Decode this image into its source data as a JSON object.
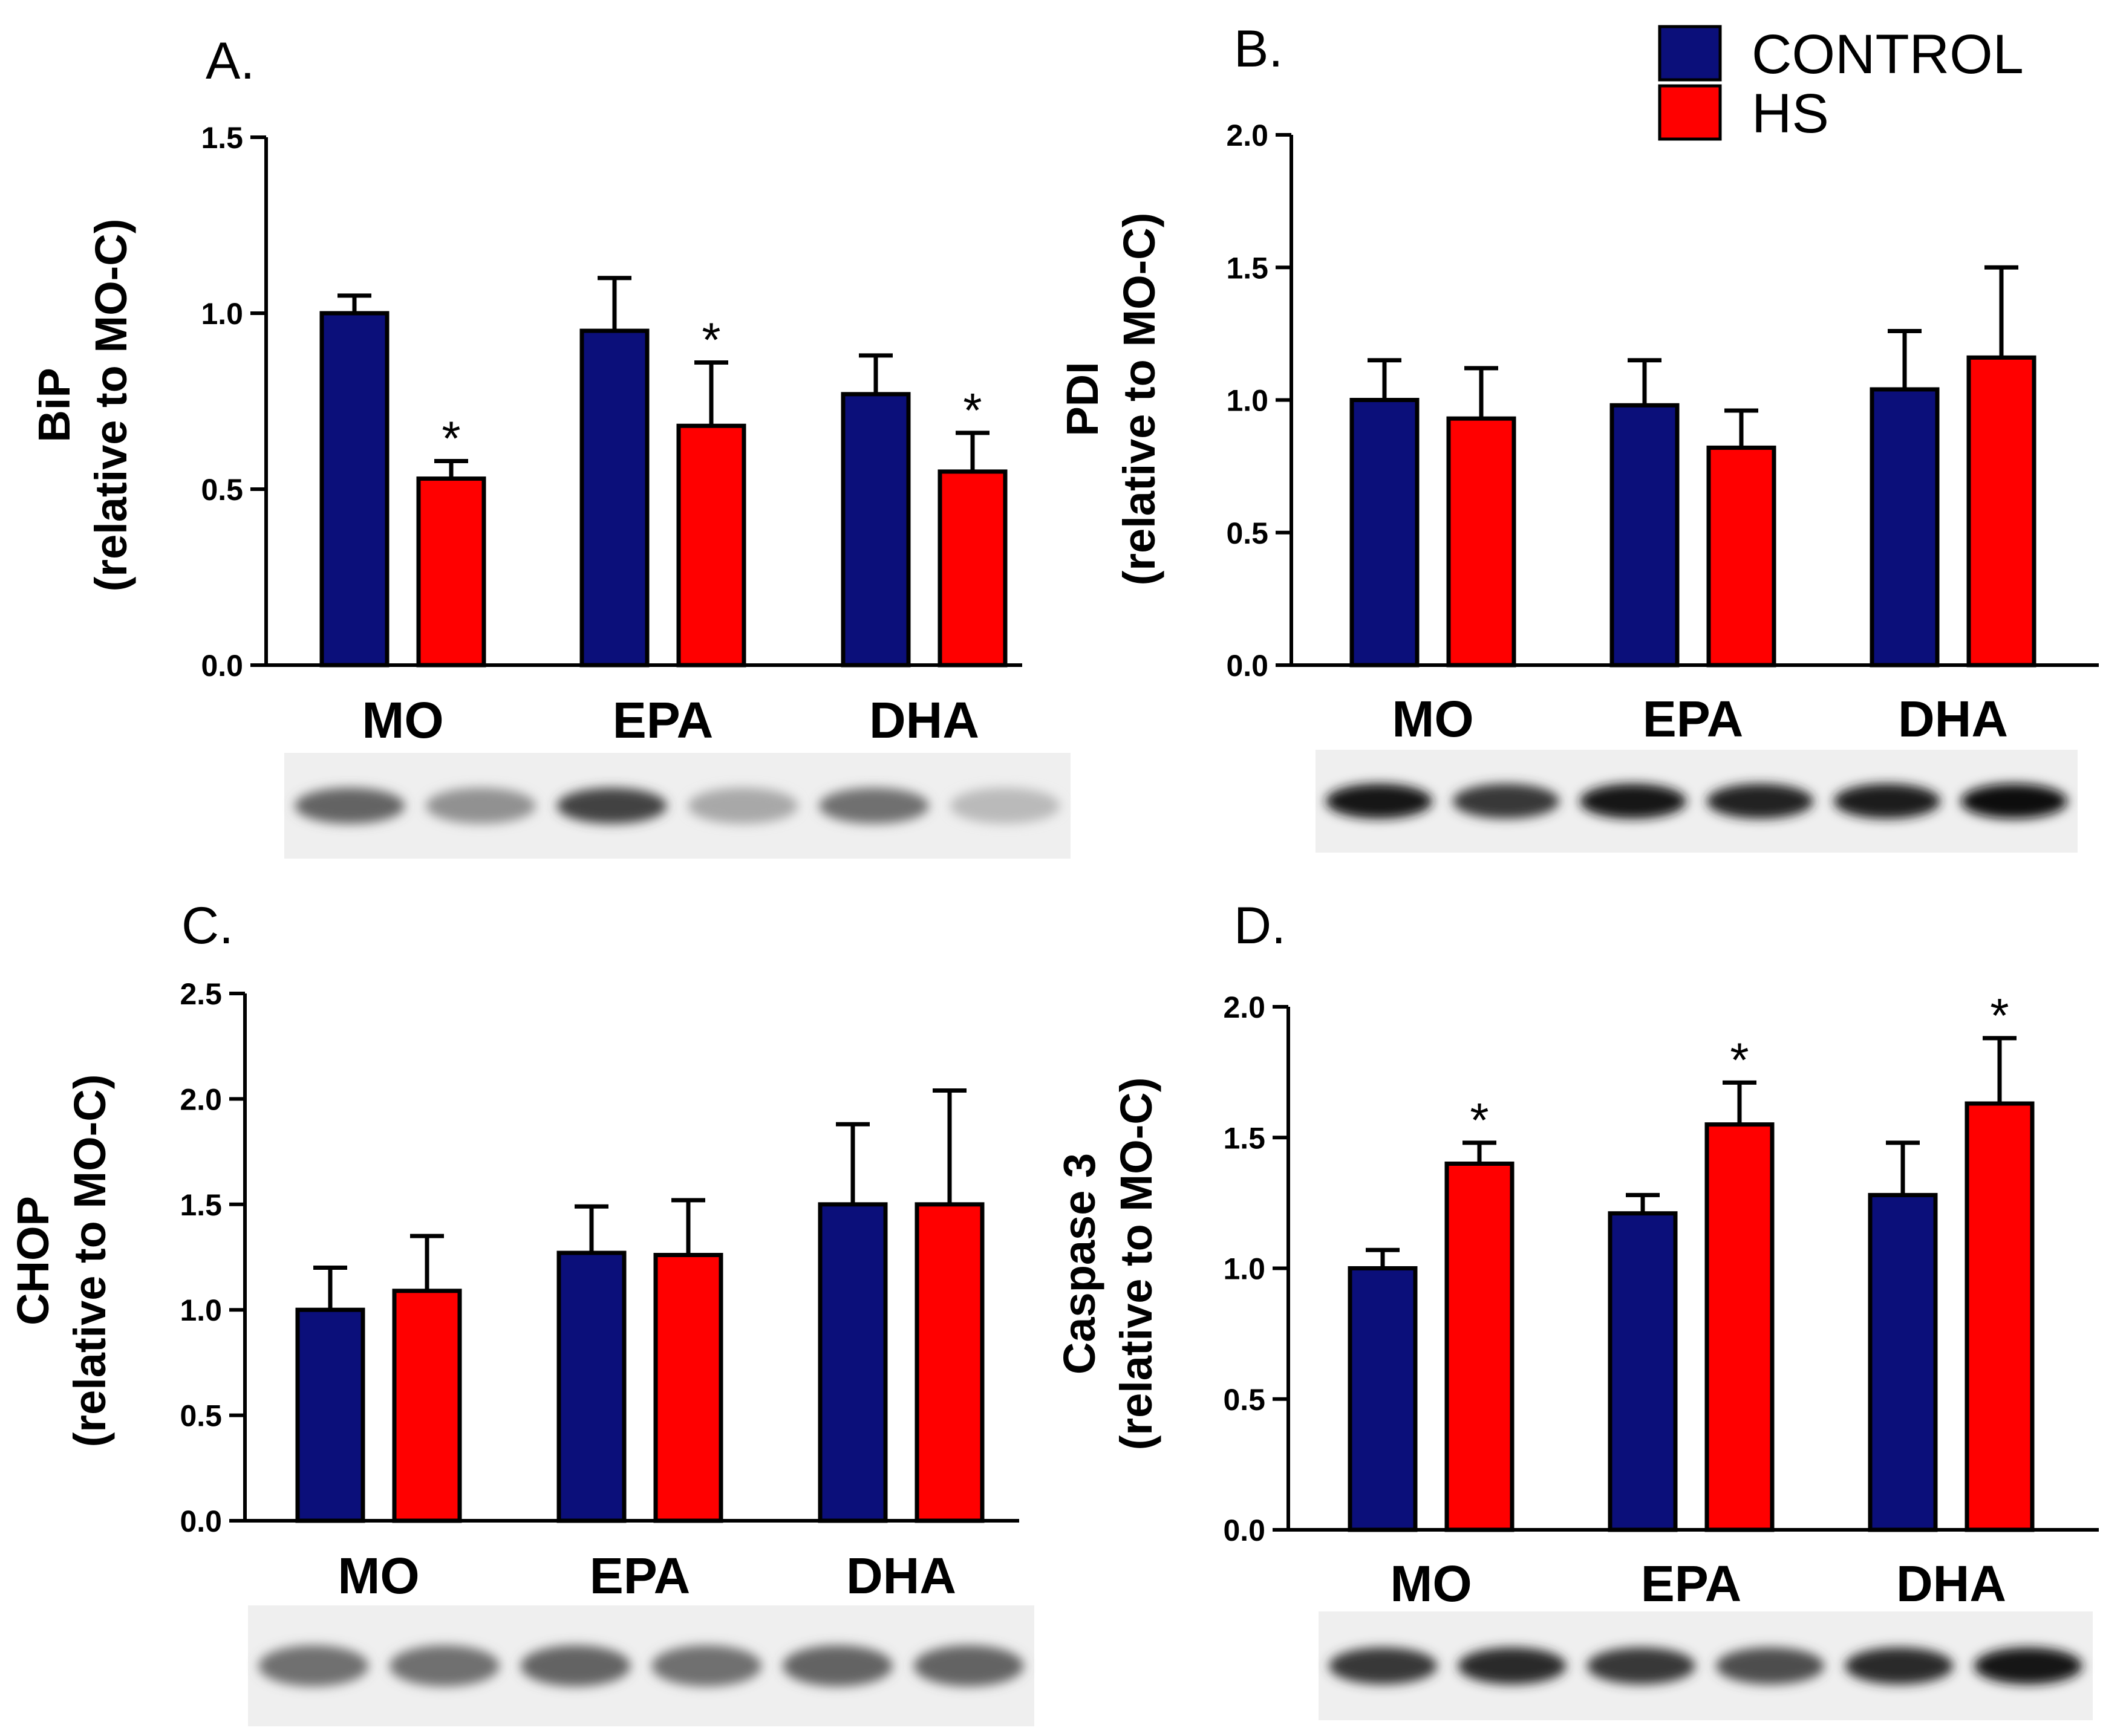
{
  "legend": {
    "items": [
      {
        "label": "CONTROL",
        "color": "#0b0f7a"
      },
      {
        "label": "HS",
        "color": "#ff0000"
      }
    ]
  },
  "chart_data": [
    {
      "type": "bar",
      "panel": "A.",
      "ylabel_line1": "BiP",
      "ylabel_line2": "(relative to MO-C)",
      "categories": [
        "MO",
        "EPA",
        "DHA"
      ],
      "ylim": [
        0,
        1.5
      ],
      "yticks": [
        "0.0",
        "0.5",
        "1.0",
        "1.5"
      ],
      "series": [
        {
          "name": "CONTROL",
          "values": [
            1.0,
            0.95,
            0.77
          ],
          "errors": [
            0.05,
            0.15,
            0.11
          ]
        },
        {
          "name": "HS",
          "values": [
            0.53,
            0.68,
            0.55
          ],
          "errors": [
            0.05,
            0.18,
            0.11
          ],
          "significant": [
            true,
            true,
            true
          ]
        }
      ],
      "significance_mark": "*",
      "blot_bands": [
        0.6,
        0.4,
        0.75,
        0.3,
        0.55,
        0.22
      ]
    },
    {
      "type": "bar",
      "panel": "B.",
      "ylabel_line1": "PDI",
      "ylabel_line2": "(relative to MO-C)",
      "categories": [
        "MO",
        "EPA",
        "DHA"
      ],
      "ylim": [
        0,
        2.0
      ],
      "yticks": [
        "0.0",
        "0.5",
        "1.0",
        "1.5",
        "2.0"
      ],
      "series": [
        {
          "name": "CONTROL",
          "values": [
            1.0,
            0.98,
            1.04
          ],
          "errors": [
            0.15,
            0.17,
            0.22
          ]
        },
        {
          "name": "HS",
          "values": [
            0.93,
            0.82,
            1.16
          ],
          "errors": [
            0.19,
            0.14,
            0.34
          ],
          "significant": [
            false,
            false,
            false
          ]
        }
      ],
      "significance_mark": "*",
      "blot_bands": [
        0.95,
        0.8,
        0.95,
        0.9,
        0.92,
        0.98
      ]
    },
    {
      "type": "bar",
      "panel": "C.",
      "ylabel_line1": "CHOP",
      "ylabel_line2": "(relative to MO-C)",
      "categories": [
        "MO",
        "EPA",
        "DHA"
      ],
      "ylim": [
        0,
        2.5
      ],
      "yticks": [
        "0.0",
        "0.5",
        "1.0",
        "1.5",
        "2.0",
        "2.5"
      ],
      "series": [
        {
          "name": "CONTROL",
          "values": [
            1.0,
            1.27,
            1.5
          ],
          "errors": [
            0.2,
            0.22,
            0.38
          ]
        },
        {
          "name": "HS",
          "values": [
            1.09,
            1.26,
            1.5
          ],
          "errors": [
            0.26,
            0.26,
            0.54
          ],
          "significant": [
            false,
            false,
            false
          ]
        }
      ],
      "significance_mark": "*",
      "blot_bands": [
        0.55,
        0.55,
        0.6,
        0.55,
        0.6,
        0.6
      ]
    },
    {
      "type": "bar",
      "panel": "D.",
      "ylabel_line1": "Caspase 3",
      "ylabel_line2": "(relative to MO-C)",
      "categories": [
        "MO",
        "EPA",
        "DHA"
      ],
      "ylim": [
        0,
        2.0
      ],
      "yticks": [
        "0.0",
        "0.5",
        "1.0",
        "1.5",
        "2.0"
      ],
      "series": [
        {
          "name": "CONTROL",
          "values": [
            1.0,
            1.21,
            1.28
          ],
          "errors": [
            0.07,
            0.07,
            0.2
          ]
        },
        {
          "name": "HS",
          "values": [
            1.4,
            1.55,
            1.63
          ],
          "errors": [
            0.08,
            0.16,
            0.25
          ],
          "significant": [
            true,
            true,
            true
          ]
        }
      ],
      "significance_mark": "*",
      "blot_bands": [
        0.8,
        0.85,
        0.8,
        0.7,
        0.85,
        0.95
      ]
    }
  ]
}
